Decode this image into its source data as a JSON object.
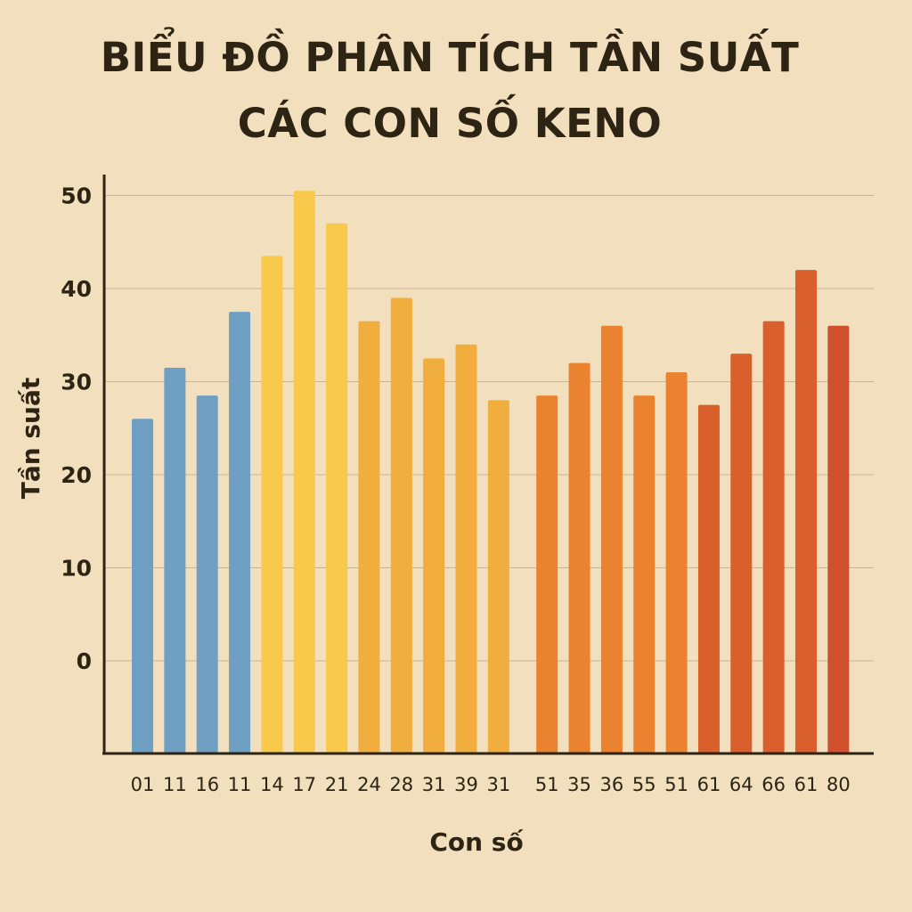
{
  "chart_data": {
    "type": "bar",
    "title_line1": "BIỂU ĐỒ PHÂN TÍCH TẦN SUẤT",
    "title_line2": "CÁC CON SỐ KENO",
    "xlabel": "Con số",
    "ylabel": "Tần suất",
    "yticks": [
      "0",
      "10",
      "20",
      "30",
      "40",
      "50"
    ],
    "ylim": [
      -10,
      50
    ],
    "grid": "horizontal",
    "categories": [
      "01",
      "11",
      "16",
      "11",
      "14",
      "17",
      "21",
      "24",
      "28",
      "31",
      "39",
      "31",
      "51",
      "35",
      "36",
      "55",
      "51",
      "61",
      "64",
      "66",
      "61",
      "80"
    ],
    "values": [
      26,
      31.5,
      28.5,
      37.5,
      43.5,
      50.5,
      47,
      36.5,
      39,
      32.5,
      34,
      28,
      28.5,
      32,
      36,
      28.5,
      31,
      27.5,
      33,
      36.5,
      42,
      36
    ],
    "colors": [
      "#6f9fc3",
      "#6f9fc3",
      "#6f9fc3",
      "#6f9fc3",
      "#f8c94b",
      "#f8c94b",
      "#f8c94b",
      "#f2ad3f",
      "#f2ad3f",
      "#f2ad3f",
      "#f2ad3f",
      "#f2ad3f",
      "#ea8230",
      "#ea8230",
      "#ea8230",
      "#ea8230",
      "#ea8230",
      "#d95f2c",
      "#d95f2c",
      "#d95f2c",
      "#d95f2c",
      "#d1502c"
    ]
  }
}
